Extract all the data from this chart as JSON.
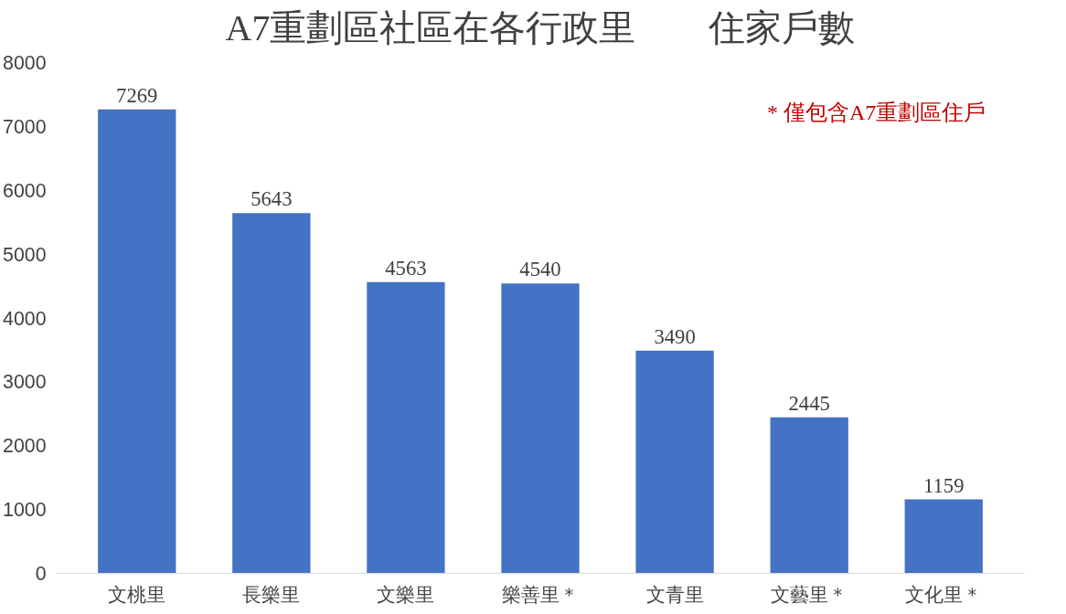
{
  "chart_data": {
    "type": "bar",
    "title": "A7重劃區社區在各行政里　　住家戶數",
    "categories": [
      "文桃里",
      "長樂里",
      "文樂里",
      "樂善里＊",
      "文青里",
      "文藝里＊",
      "文化里＊"
    ],
    "values": [
      7269,
      5643,
      4563,
      4540,
      3490,
      2445,
      1159
    ],
    "color": "#4472c4",
    "ylim": [
      0,
      8000
    ],
    "yticks": [
      0,
      1000,
      2000,
      3000,
      4000,
      5000,
      6000,
      7000,
      8000
    ],
    "grid": false,
    "data_labels": true,
    "annotations": [
      "* 僅包含A7重劃區住戶"
    ]
  }
}
